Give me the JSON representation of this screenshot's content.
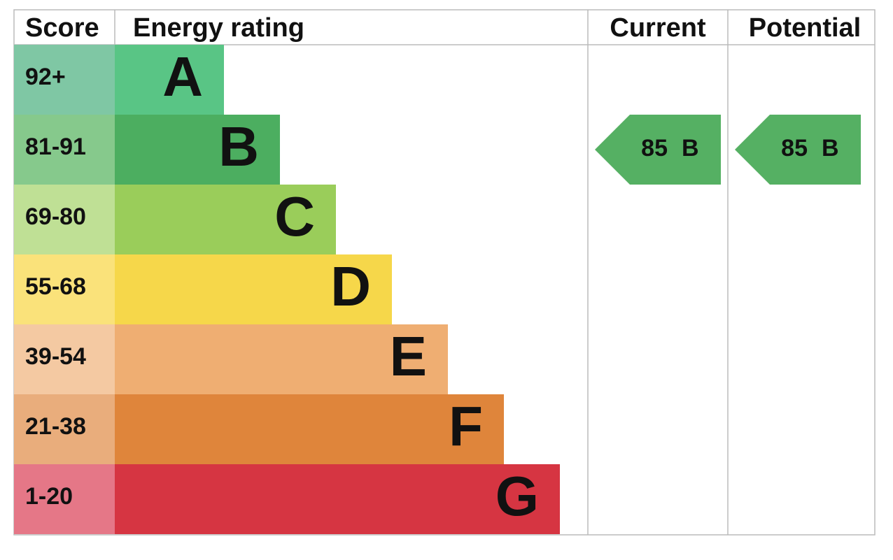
{
  "header": {
    "score": "Score",
    "energy_rating": "Energy rating",
    "current": "Current",
    "potential": "Potential"
  },
  "bands": [
    {
      "score": "92+",
      "rating": "A"
    },
    {
      "score": "81-91",
      "rating": "B"
    },
    {
      "score": "69-80",
      "rating": "C"
    },
    {
      "score": "55-68",
      "rating": "D"
    },
    {
      "score": "39-54",
      "rating": "E"
    },
    {
      "score": "21-38",
      "rating": "F"
    },
    {
      "score": "1-20",
      "rating": "G"
    }
  ],
  "current": {
    "value": 85,
    "rating": "B"
  },
  "potential": {
    "value": 85,
    "rating": "B"
  }
}
